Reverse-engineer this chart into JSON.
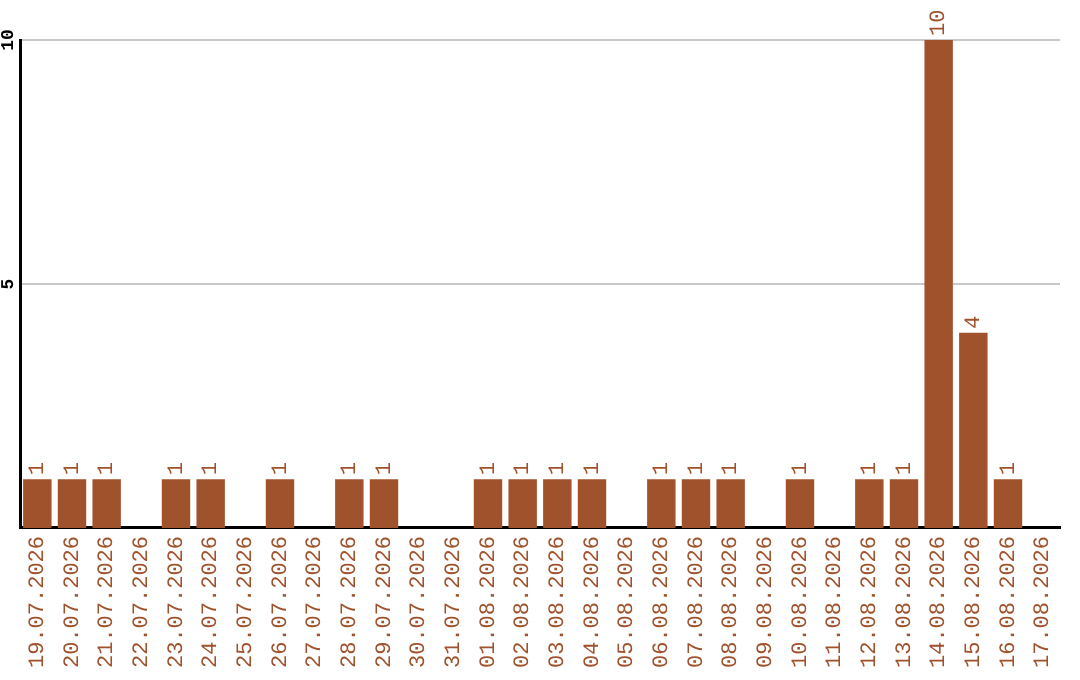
{
  "chart_data": {
    "type": "bar",
    "categories": [
      "19.07.2026",
      "20.07.2026",
      "21.07.2026",
      "22.07.2026",
      "23.07.2026",
      "24.07.2026",
      "25.07.2026",
      "26.07.2026",
      "27.07.2026",
      "28.07.2026",
      "29.07.2026",
      "30.07.2026",
      "31.07.2026",
      "01.08.2026",
      "02.08.2026",
      "03.08.2026",
      "04.08.2026",
      "05.08.2026",
      "06.08.2026",
      "07.08.2026",
      "08.08.2026",
      "09.08.2026",
      "10.08.2026",
      "11.08.2026",
      "12.08.2026",
      "13.08.2026",
      "14.08.2026",
      "15.08.2026",
      "16.08.2026",
      "17.08.2026"
    ],
    "values": [
      1,
      1,
      1,
      0,
      1,
      1,
      0,
      1,
      0,
      1,
      1,
      0,
      0,
      1,
      1,
      1,
      1,
      0,
      1,
      1,
      1,
      0,
      1,
      0,
      1,
      1,
      10,
      4,
      1,
      0
    ],
    "value_labels": [
      "1",
      "1",
      "1",
      null,
      "1",
      "1",
      null,
      "1",
      null,
      "1",
      "1",
      null,
      null,
      "1",
      "1",
      "1",
      "1",
      null,
      "1",
      "1",
      "1",
      null,
      "1",
      null,
      "1",
      "1",
      "10",
      "4",
      "1",
      null
    ],
    "color": "#a0522d",
    "ylim": [
      0,
      10
    ],
    "yticks": [
      5,
      10
    ],
    "grid": "y"
  }
}
